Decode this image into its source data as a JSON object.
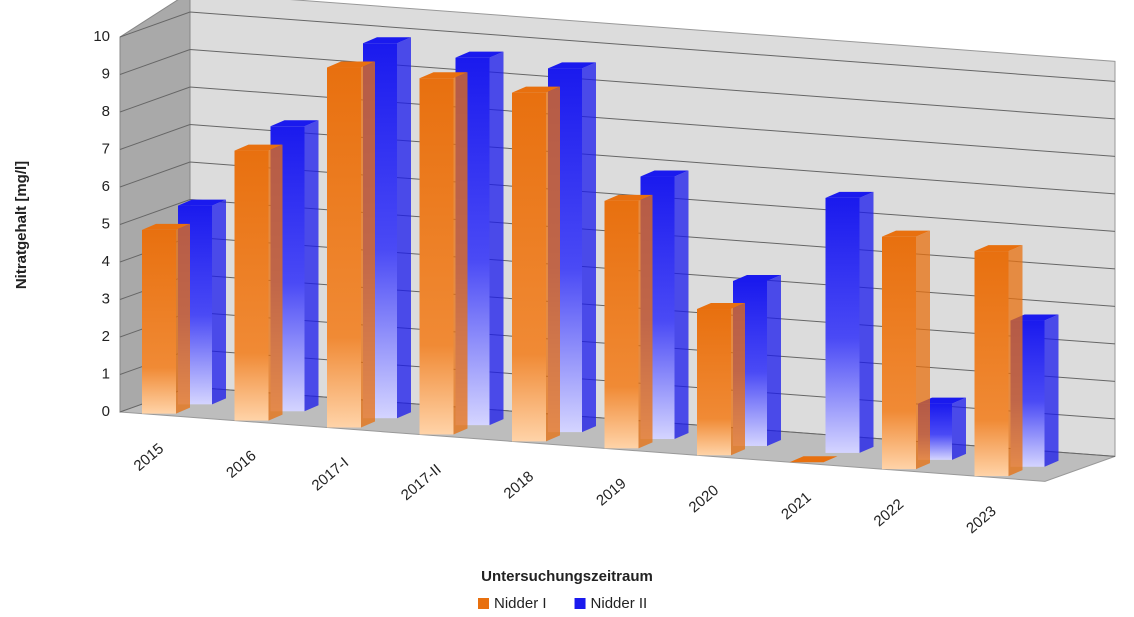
{
  "chart_data": {
    "type": "bar3d",
    "x_label": "Untersuchungszeitraum",
    "y_label": "Nitratgehalt [mg/l]",
    "categories": [
      "2015",
      "2016",
      "2017-I",
      "2017-II",
      "2018",
      "2019",
      "2020",
      "2021",
      "2022",
      "2023"
    ],
    "series": [
      {
        "name": "Nidder I",
        "color": "#e8700f",
        "values": [
          4.9,
          7.2,
          9.6,
          9.5,
          9.3,
          6.6,
          3.9,
          0,
          6.2,
          6.0
        ]
      },
      {
        "name": "Nidder II",
        "color": "#1a1aee",
        "values": [
          5.3,
          7.6,
          10.0,
          9.8,
          9.7,
          7.0,
          4.4,
          6.8,
          1.5,
          3.9
        ]
      }
    ],
    "ylim": [
      0,
      10
    ],
    "yticks": [
      0,
      1,
      2,
      3,
      4,
      5,
      6,
      7,
      8,
      9,
      10
    ],
    "grid": true,
    "legend": "bottom"
  }
}
